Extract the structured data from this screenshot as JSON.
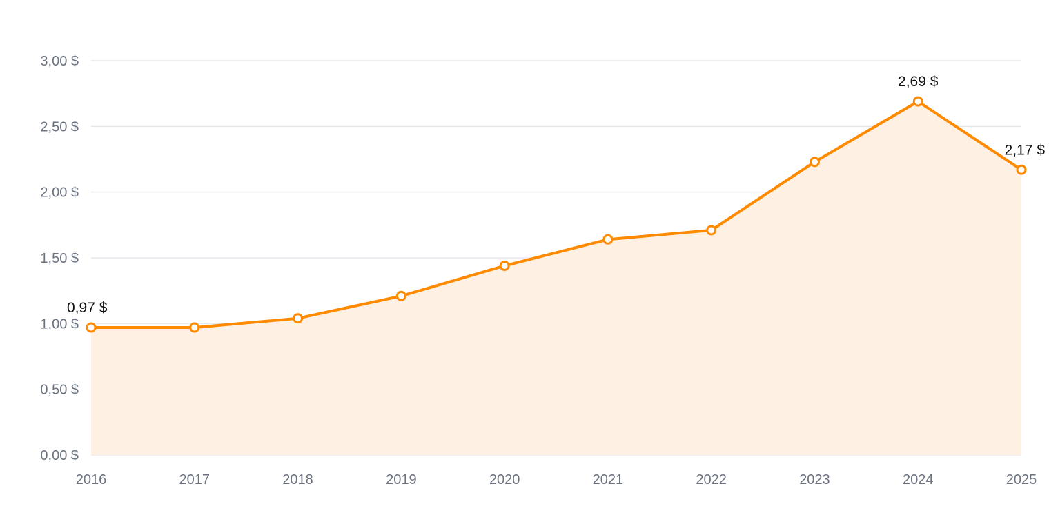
{
  "chart_data": {
    "type": "area",
    "title": "",
    "xlabel": "",
    "ylabel": "",
    "x": [
      "2016",
      "2017",
      "2018",
      "2019",
      "2020",
      "2021",
      "2022",
      "2023",
      "2024",
      "2025"
    ],
    "series": [
      {
        "values": [
          0.97,
          0.97,
          1.04,
          1.21,
          1.44,
          1.64,
          1.71,
          2.23,
          2.69,
          2.17
        ],
        "color": "#ff8a00",
        "fill": "#fef1e4"
      }
    ],
    "ylim": [
      0,
      3
    ],
    "y_ticks": [
      0,
      0.5,
      1,
      1.5,
      2,
      2.5,
      3
    ],
    "y_tick_labels": [
      "0,00 $",
      "0,50 $",
      "1,00 $",
      "1,50 $",
      "2,00 $",
      "2,50 $",
      "3,00 $"
    ],
    "data_labels": [
      {
        "x": "2016",
        "text": "0,97 $"
      },
      {
        "x": "2024",
        "text": "2,69 $"
      },
      {
        "x": "2025",
        "text": "2,17 $"
      }
    ],
    "grid": true,
    "legend": "none"
  }
}
